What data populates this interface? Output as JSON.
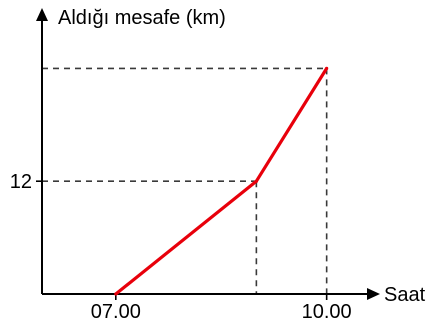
{
  "chart_data": {
    "type": "line",
    "title": "",
    "ylabel": "Aldığı mesafe (km)",
    "xlabel": "Saat",
    "x_ticks": [
      {
        "value": 7,
        "label": "07.00"
      },
      {
        "value": 10,
        "label": "10.00"
      }
    ],
    "y_ticks": [
      {
        "value": 12,
        "label": "12"
      }
    ],
    "grid": false,
    "series": [
      {
        "color": "#e8000b",
        "points": [
          {
            "x": 7,
            "y": 0
          },
          {
            "x": 9,
            "y": 12
          },
          {
            "x": 10,
            "y": 24
          }
        ]
      }
    ],
    "xlim": [
      5.95,
      11.2
    ],
    "ylim": [
      0,
      30
    ]
  }
}
